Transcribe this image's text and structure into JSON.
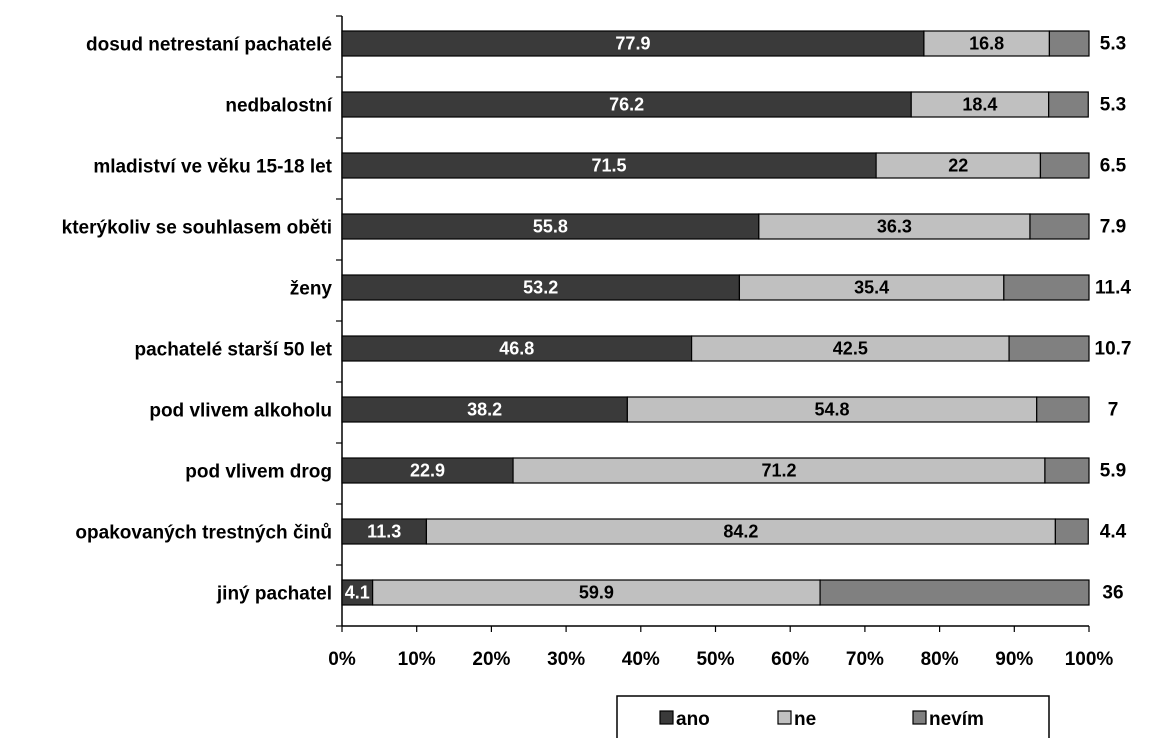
{
  "chart_data": {
    "type": "bar",
    "orientation": "horizontal",
    "stacked": true,
    "percent_stacked": true,
    "categories": [
      "dosud netrestaní pachatelé",
      "nedbalostní",
      "mladiství ve věku 15-18 let",
      "kterýkoliv se souhlasem oběti",
      "ženy",
      "pachatelé starší 50 let",
      "pod vlivem alkoholu",
      "pod vlivem drog",
      "opakovaných trestných činů",
      "jiný pachatel"
    ],
    "series": [
      {
        "name": "ano",
        "color": "#3a3a3a",
        "values": [
          77.9,
          76.2,
          71.5,
          55.8,
          53.2,
          46.8,
          38.2,
          22.9,
          11.3,
          4.1
        ]
      },
      {
        "name": "ne",
        "color": "#c0c0c0",
        "values": [
          16.8,
          18.4,
          22,
          36.3,
          35.4,
          42.5,
          54.8,
          71.2,
          84.2,
          59.9
        ]
      },
      {
        "name": "nevím",
        "color": "#808080",
        "values": [
          5.3,
          5.3,
          6.5,
          7.9,
          11.4,
          10.7,
          7,
          5.9,
          4.4,
          36
        ]
      }
    ],
    "xlim": [
      0,
      100
    ],
    "x_ticks": [
      "0%",
      "10%",
      "20%",
      "30%",
      "40%",
      "50%",
      "60%",
      "70%",
      "80%",
      "90%",
      "100%"
    ],
    "grid": false,
    "legend_position": "bottom-right",
    "title": "",
    "xlabel": "",
    "ylabel": ""
  }
}
